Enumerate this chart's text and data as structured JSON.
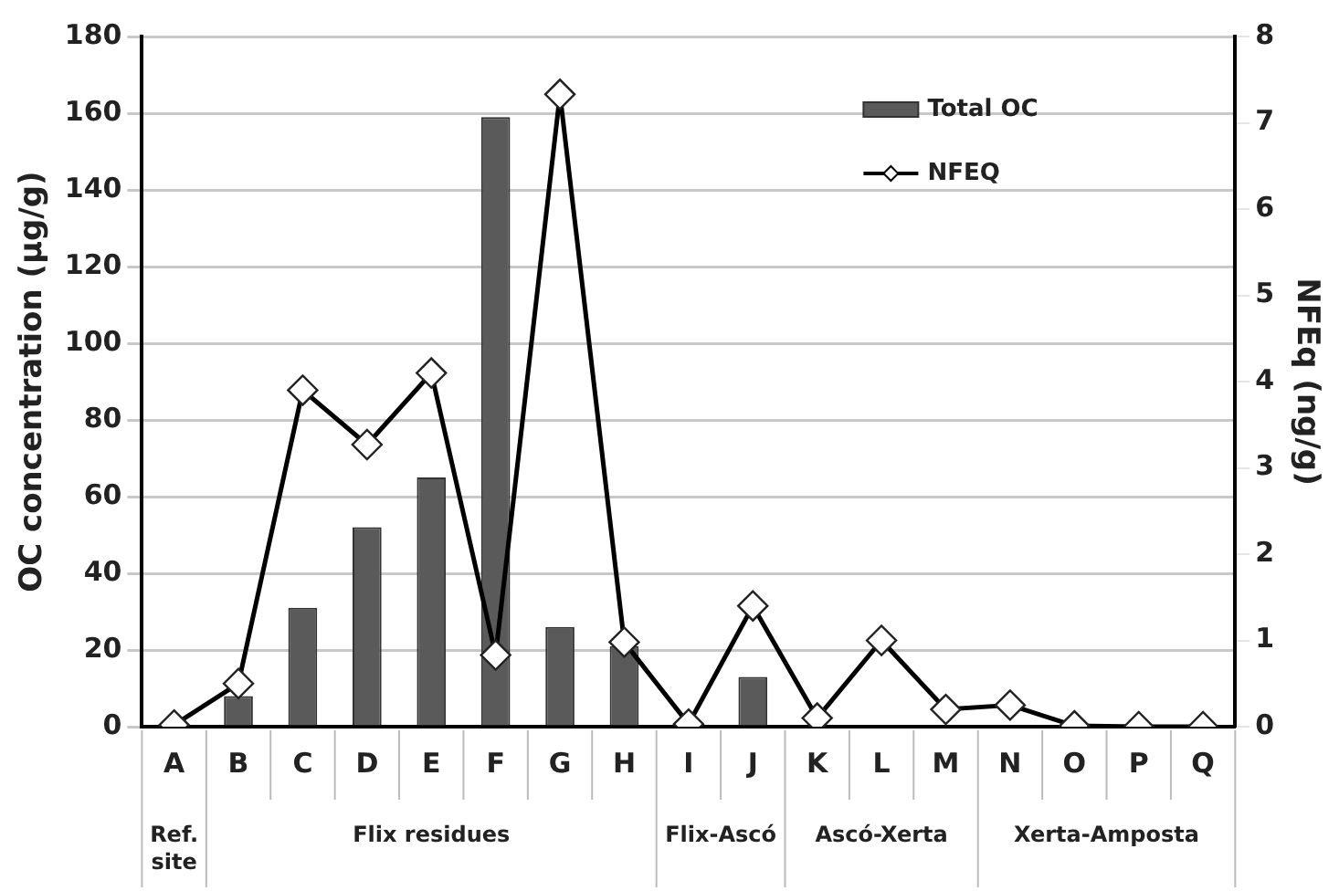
{
  "chart_data": {
    "type": "bar",
    "categories": [
      "A",
      "B",
      "C",
      "D",
      "E",
      "F",
      "G",
      "H",
      "I",
      "J",
      "K",
      "L",
      "M",
      "N",
      "O",
      "P",
      "Q"
    ],
    "series": [
      {
        "name": "Total OC",
        "color": "#5a5a5a",
        "values": [
          0,
          8,
          31,
          52,
          65,
          159,
          26,
          21,
          0,
          13,
          0,
          0,
          null,
          0,
          0,
          0,
          0
        ]
      },
      {
        "name": "NFEQ",
        "type": "line",
        "axis": "y2",
        "color": "#000000",
        "marker": "diamond",
        "values": [
          0.02,
          0.5,
          3.9,
          3.27,
          4.1,
          0.83,
          7.33,
          0.98,
          0.03,
          1.4,
          0.1,
          1.0,
          0.2,
          0.25,
          0.01,
          0,
          0
        ]
      }
    ],
    "ylabel": "OC concentration (µg/g)",
    "y2label": "NFEq (ng/g)",
    "ylim": [
      0,
      180
    ],
    "yticks": [
      0,
      20,
      40,
      60,
      80,
      100,
      120,
      140,
      160,
      180
    ],
    "y2lim": [
      0,
      8
    ],
    "y2ticks": [
      0,
      1,
      2,
      3,
      4,
      5,
      6,
      7,
      8
    ],
    "grid": "y",
    "legend": "top right",
    "annotations": [
      "Ref. site",
      "Flix residues",
      "Flix-Ascó",
      "Ascó-Xerta",
      "Xerta-Amposta"
    ]
  }
}
